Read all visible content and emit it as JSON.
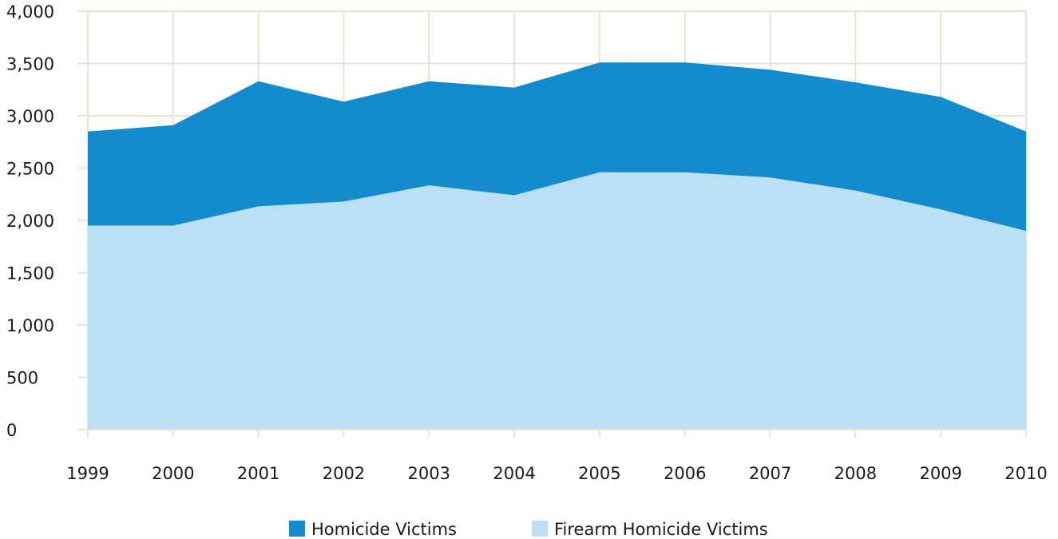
{
  "chart_data": {
    "type": "area",
    "x": [
      "1999",
      "2000",
      "2001",
      "2002",
      "2003",
      "2004",
      "2005",
      "2006",
      "2007",
      "2008",
      "2009",
      "2010"
    ],
    "series": [
      {
        "name": "Homicide Victims",
        "color": "#138bcc",
        "values": [
          2850,
          2910,
          3330,
          3135,
          3330,
          3270,
          3510,
          3510,
          3440,
          3320,
          3180,
          2850
        ]
      },
      {
        "name": "Firearm Homicide Victims",
        "color": "#bbe0f6",
        "values": [
          1950,
          1950,
          2135,
          2180,
          2335,
          2240,
          2460,
          2460,
          2410,
          2285,
          2105,
          1900
        ]
      }
    ],
    "y_ticks": [
      "0",
      "500",
      "1,000",
      "1,500",
      "2,000",
      "2,500",
      "3,000",
      "3,500",
      "4,000"
    ],
    "ylim": [
      0,
      4000
    ],
    "grid": true,
    "legend_position": "bottom"
  }
}
